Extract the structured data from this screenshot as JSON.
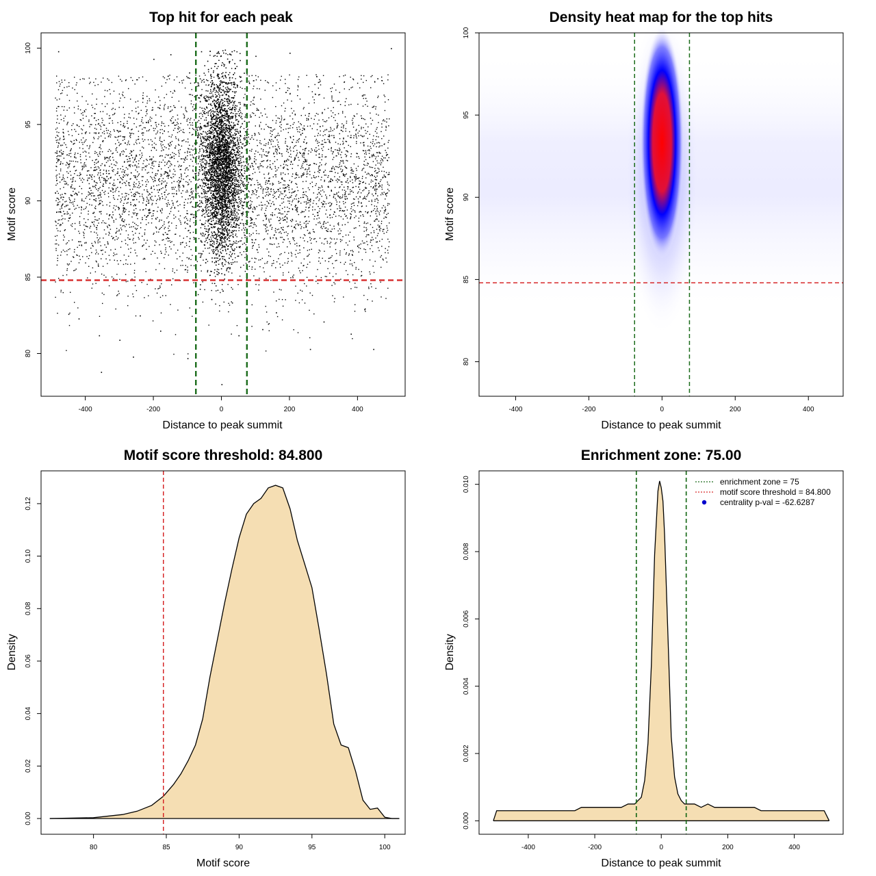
{
  "figure": {
    "panels": [
      {
        "title": "Top hit for each peak"
      },
      {
        "title": "Density heat map for the top hits"
      },
      {
        "title": "Motif score threshold: 84.800"
      },
      {
        "title": "Enrichment zone: 75.00"
      }
    ]
  },
  "chart_data": [
    {
      "type": "scatter",
      "title": "Top hit for each peak",
      "xlabel": "Distance to peak summit",
      "ylabel": "Motif score",
      "xlim": [
        -530,
        540
      ],
      "ylim": [
        77.2,
        101.0
      ],
      "xticks": [
        "-400",
        "-200",
        "0",
        "200",
        "400"
      ],
      "yticks": [
        "80",
        "85",
        "90",
        "95",
        "100"
      ],
      "point_color": "#000000",
      "series": [
        {
          "points": [
            [
              -480,
              99.8
            ],
            [
              -354,
              78.8
            ],
            [
              -260,
              79.8
            ],
            [
              -100,
              79.7
            ],
            [
              0,
              78.0
            ],
            [
              260,
              80.3
            ],
            [
              446,
              80.3
            ],
            [
              498,
              100.0
            ],
            [
              -360,
              81.2
            ],
            [
              -300,
              80.9
            ],
            [
              -180,
              81.5
            ],
            [
              50,
              81.2
            ],
            [
              120,
              81.6
            ],
            [
              300,
              82.1
            ],
            [
              380,
              81.3
            ],
            [
              -420,
              82.3
            ],
            [
              -450,
              82.6
            ],
            [
              -240,
              82.5
            ],
            [
              160,
              82.7
            ],
            [
              420,
              82.9
            ],
            [
              -200,
              99.3
            ],
            [
              -150,
              99.6
            ],
            [
              100,
              99.5
            ],
            [
              200,
              99.7
            ],
            [
              -60,
              99.8
            ],
            [
              -10,
              99.8
            ],
            [
              10,
              99.9
            ],
            [
              30,
              99.8
            ]
          ]
        }
      ],
      "hlines": [
        {
          "y": 84.8,
          "color": "#d62728"
        }
      ],
      "vlines": [
        {
          "x": -75,
          "color": "#1a6b1a"
        },
        {
          "x": 75,
          "color": "#1a6b1a"
        }
      ]
    },
    {
      "type": "heatmap",
      "title": "Density heat map for the top hits",
      "xlabel": "Distance to peak summit",
      "ylabel": "Motif score",
      "xlim": [
        -500,
        495
      ],
      "ylim": [
        77.9,
        100.0
      ],
      "xticks": [
        "-400",
        "-200",
        "0",
        "200",
        "400"
      ],
      "yticks": [
        "80",
        "85",
        "90",
        "95",
        "100"
      ],
      "colors": [
        "#ffffff",
        "#0000ff",
        "#ff0000"
      ],
      "peak": {
        "x": 0,
        "y": 93.0
      },
      "hlines": [
        {
          "y": 84.8,
          "color": "#d62728"
        }
      ],
      "vlines": [
        {
          "x": -75,
          "color": "#1a6b1a"
        },
        {
          "x": 75,
          "color": "#1a6b1a"
        }
      ]
    },
    {
      "type": "area",
      "title": "Motif score threshold: 84.800",
      "xlabel": "Motif score",
      "ylabel": "Density",
      "xlim": [
        76.4,
        101.4
      ],
      "ylim": [
        -0.006,
        0.1325
      ],
      "xticks": [
        "80",
        "85",
        "90",
        "95",
        "100"
      ],
      "yticks": [
        "0.00",
        "0.02",
        "0.04",
        "0.06",
        "0.08",
        "0.10",
        "0.12"
      ],
      "fill_color": "#f5deb3",
      "threshold": 84.8,
      "series": [
        {
          "x": [
            77.0,
            80.0,
            82.0,
            83.0,
            84.0,
            84.8,
            85.5,
            86.0,
            86.5,
            87.0,
            87.5,
            88.0,
            88.5,
            89.0,
            89.5,
            90.0,
            90.5,
            91.0,
            91.5,
            92.0,
            92.5,
            93.0,
            93.5,
            94.0,
            94.5,
            95.0,
            95.5,
            96.0,
            96.5,
            97.0,
            97.5,
            98.0,
            98.5,
            99.0,
            99.5,
            100.0,
            100.5,
            101.0
          ],
          "y": [
            0.0,
            0.0003,
            0.0015,
            0.0028,
            0.005,
            0.0085,
            0.013,
            0.017,
            0.022,
            0.028,
            0.038,
            0.054,
            0.068,
            0.082,
            0.095,
            0.107,
            0.116,
            0.12,
            0.122,
            0.126,
            0.127,
            0.126,
            0.118,
            0.106,
            0.097,
            0.088,
            0.072,
            0.055,
            0.036,
            0.028,
            0.027,
            0.018,
            0.007,
            0.0035,
            0.004,
            0.0005,
            0.0,
            0.0
          ]
        }
      ]
    },
    {
      "type": "area",
      "title": "Enrichment zone: 75.00",
      "xlabel": "Distance to peak summit",
      "ylabel": "Density",
      "xlim": [
        -548,
        547
      ],
      "ylim": [
        -0.0004,
        0.0104
      ],
      "xticks": [
        "-400",
        "-200",
        "0",
        "200",
        "400"
      ],
      "yticks": [
        "0.000",
        "0.002",
        "0.004",
        "0.006",
        "0.008",
        "0.010"
      ],
      "fill_color": "#f5deb3",
      "legend": {
        "position": "top-right",
        "entries": [
          {
            "label": "enrichment zone = 75",
            "color": "#1a6b1a",
            "marker": "dotted-line"
          },
          {
            "label": "motif score threshold = 84.800",
            "color": "#d62728",
            "marker": "dotted-line"
          },
          {
            "label": "centrality p-val = -62.6287",
            "color": "#0000cc",
            "marker": "dot"
          }
        ]
      },
      "vlines": [
        {
          "x": -75,
          "color": "#1a6b1a"
        },
        {
          "x": 75,
          "color": "#1a6b1a"
        }
      ],
      "series": [
        {
          "x": [
            -505,
            -495,
            -480,
            -460,
            -440,
            -420,
            -400,
            -380,
            -360,
            -340,
            -320,
            -300,
            -280,
            -260,
            -240,
            -220,
            -200,
            -180,
            -160,
            -140,
            -120,
            -100,
            -90,
            -80,
            -70,
            -60,
            -50,
            -40,
            -30,
            -20,
            -10,
            -5,
            0,
            5,
            10,
            20,
            30,
            40,
            50,
            60,
            70,
            80,
            90,
            100,
            120,
            140,
            160,
            180,
            200,
            220,
            240,
            260,
            280,
            300,
            320,
            340,
            360,
            380,
            400,
            420,
            440,
            460,
            480,
            490,
            500,
            505
          ],
          "y": [
            0.0,
            0.0003,
            0.0003,
            0.0003,
            0.0003,
            0.0003,
            0.0003,
            0.0003,
            0.0003,
            0.0003,
            0.0003,
            0.0003,
            0.0003,
            0.0003,
            0.0004,
            0.0004,
            0.0004,
            0.0004,
            0.0004,
            0.0004,
            0.0004,
            0.0005,
            0.0005,
            0.0005,
            0.0006,
            0.0007,
            0.0012,
            0.0023,
            0.0046,
            0.0079,
            0.0098,
            0.0101,
            0.0099,
            0.0095,
            0.0085,
            0.0055,
            0.0025,
            0.0013,
            0.0008,
            0.0006,
            0.0005,
            0.0005,
            0.0005,
            0.0005,
            0.0004,
            0.0005,
            0.0004,
            0.0004,
            0.0004,
            0.0004,
            0.0004,
            0.0004,
            0.0004,
            0.0003,
            0.0003,
            0.0003,
            0.0003,
            0.0003,
            0.0003,
            0.0003,
            0.0003,
            0.0003,
            0.0003,
            0.0003,
            0.0001,
            0.0
          ]
        }
      ]
    }
  ]
}
